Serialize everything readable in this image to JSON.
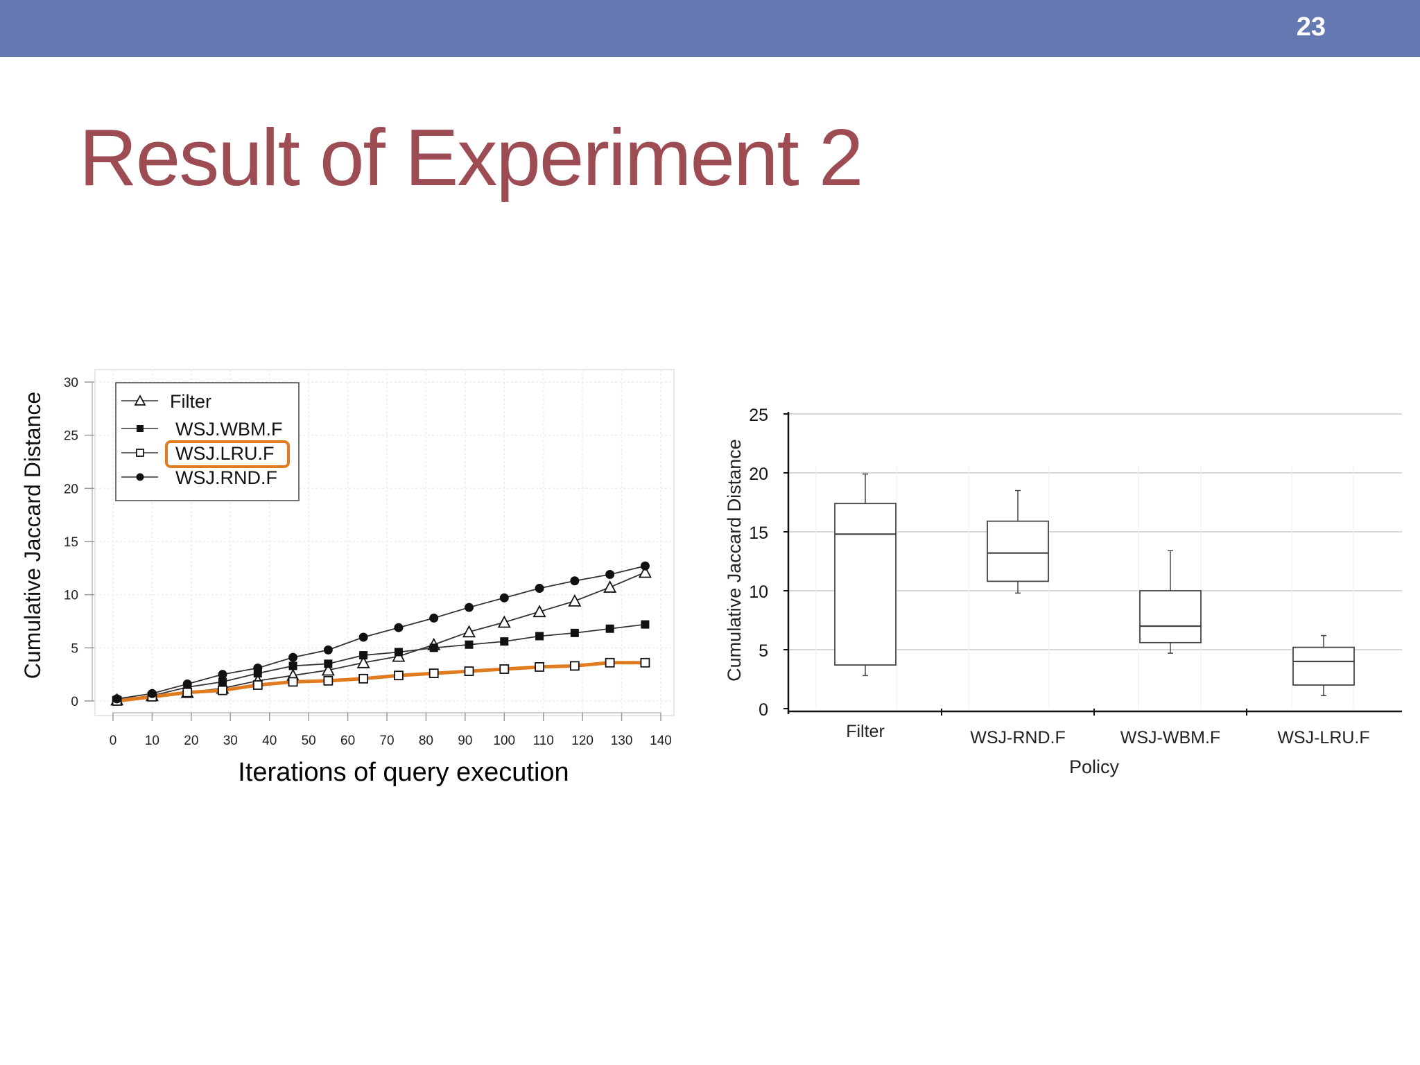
{
  "slide": {
    "page_number": "23",
    "title": "Result of Experiment 2",
    "bar_color": "#6478b2",
    "title_color": "#9c4c52"
  },
  "chart_data": [
    {
      "type": "line",
      "xlabel": "Iterations of query execution",
      "ylabel": "Cumulative Jaccard Distance",
      "xlim": [
        0,
        140
      ],
      "ylim": [
        0,
        30
      ],
      "x_ticks": [
        0,
        10,
        20,
        30,
        40,
        50,
        60,
        70,
        80,
        90,
        100,
        110,
        120,
        130,
        140
      ],
      "y_ticks": [
        0,
        5,
        10,
        15,
        20,
        25,
        30
      ],
      "grid": true,
      "legend": "top-left",
      "highlight_series": "WSJ.LRU.F",
      "highlight_color": "#e07b20",
      "x": [
        1,
        10,
        19,
        28,
        37,
        46,
        55,
        64,
        73,
        82,
        91,
        100,
        109,
        118,
        127,
        136
      ],
      "series": [
        {
          "name": "Filter",
          "marker": "open-triangle",
          "values": [
            0.1,
            0.5,
            0.8,
            1.2,
            1.9,
            2.4,
            2.9,
            3.6,
            4.2,
            5.3,
            6.5,
            7.4,
            8.4,
            9.4,
            10.7,
            12.1
          ]
        },
        {
          "name": "WSJ.WBM.F",
          "marker": "filled-square",
          "values": [
            0.1,
            0.5,
            1.3,
            1.8,
            2.6,
            3.3,
            3.5,
            4.3,
            4.6,
            5.0,
            5.3,
            5.6,
            6.1,
            6.4,
            6.8,
            7.2
          ]
        },
        {
          "name": "WSJ.LRU.F",
          "marker": "open-square",
          "values": [
            0.0,
            0.4,
            0.8,
            1.0,
            1.5,
            1.8,
            1.9,
            2.1,
            2.4,
            2.6,
            2.8,
            3.0,
            3.2,
            3.3,
            3.6,
            3.6
          ]
        },
        {
          "name": "WSJ.RND.F",
          "marker": "filled-circle",
          "values": [
            0.2,
            0.7,
            1.6,
            2.5,
            3.1,
            4.1,
            4.8,
            6.0,
            6.9,
            7.8,
            8.8,
            9.7,
            10.6,
            11.3,
            11.9,
            12.7
          ]
        }
      ]
    },
    {
      "type": "box",
      "xlabel": "Policy",
      "ylabel": "Cumulative Jaccard Distance",
      "ylim": [
        0,
        25
      ],
      "y_ticks": [
        0,
        5,
        10,
        15,
        20,
        25
      ],
      "grid": true,
      "categories": [
        "Filter",
        "WSJ-RND.F",
        "WSJ-WBM.F",
        "WSJ-LRU.F"
      ],
      "boxes": [
        {
          "min": 2.8,
          "q1": 3.7,
          "median": 14.8,
          "q3": 17.4,
          "max": 19.9
        },
        {
          "min": 9.8,
          "q1": 10.8,
          "median": 13.2,
          "q3": 15.9,
          "max": 18.5
        },
        {
          "min": 4.7,
          "q1": 5.6,
          "median": 7.0,
          "q3": 10.0,
          "max": 13.4
        },
        {
          "min": 1.1,
          "q1": 2.0,
          "median": 4.0,
          "q3": 5.2,
          "max": 6.2
        }
      ]
    }
  ]
}
